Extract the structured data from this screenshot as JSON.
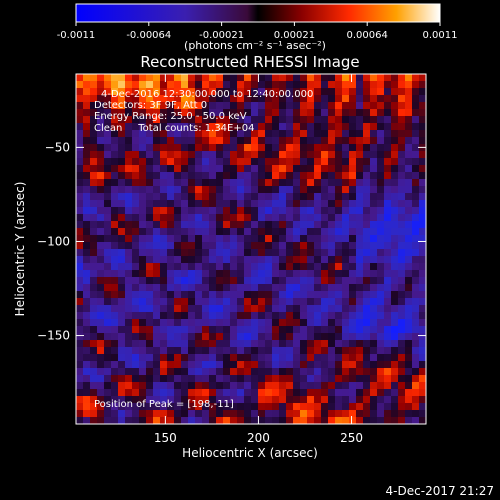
{
  "chart_data": {
    "type": "heatmap",
    "title": "Reconstructed RHESSI Image",
    "xlabel": "Heliocentric X (arcsec)",
    "ylabel": "Heliocentric Y (arcsec)",
    "xlim": [
      102,
      290
    ],
    "ylim": [
      -197,
      -11
    ],
    "x_ticks": [
      150,
      200,
      250
    ],
    "y_ticks": [
      -50,
      -100,
      -150
    ],
    "colorbar": {
      "min": -0.0011,
      "max": 0.0011,
      "ticks": [
        "-0.0011",
        "-0.00064",
        "-0.00021",
        "0.00021",
        "0.00064",
        "0.0011"
      ],
      "unit_label": "(photons cm⁻² s⁻¹ asec⁻²)"
    },
    "annotations": {
      "time_range": "4-Dec-2016 12:30:00.000 to 12:40:00.000",
      "detectors": "Detectors: 3F 9F, Att 0",
      "energy": "Energy Range: 25.0 - 50.0 keV",
      "clean": "Clean     Total counts: 1.34E+04",
      "peak": "Position of Peak = [198,-11]"
    },
    "timestamp": "4-Dec-2017 21:27",
    "colors": {
      "background": "#000000",
      "low": "#2020ff",
      "mid": "#4b1a8c",
      "high": "#ff3000",
      "peak": "#ffff80"
    }
  }
}
